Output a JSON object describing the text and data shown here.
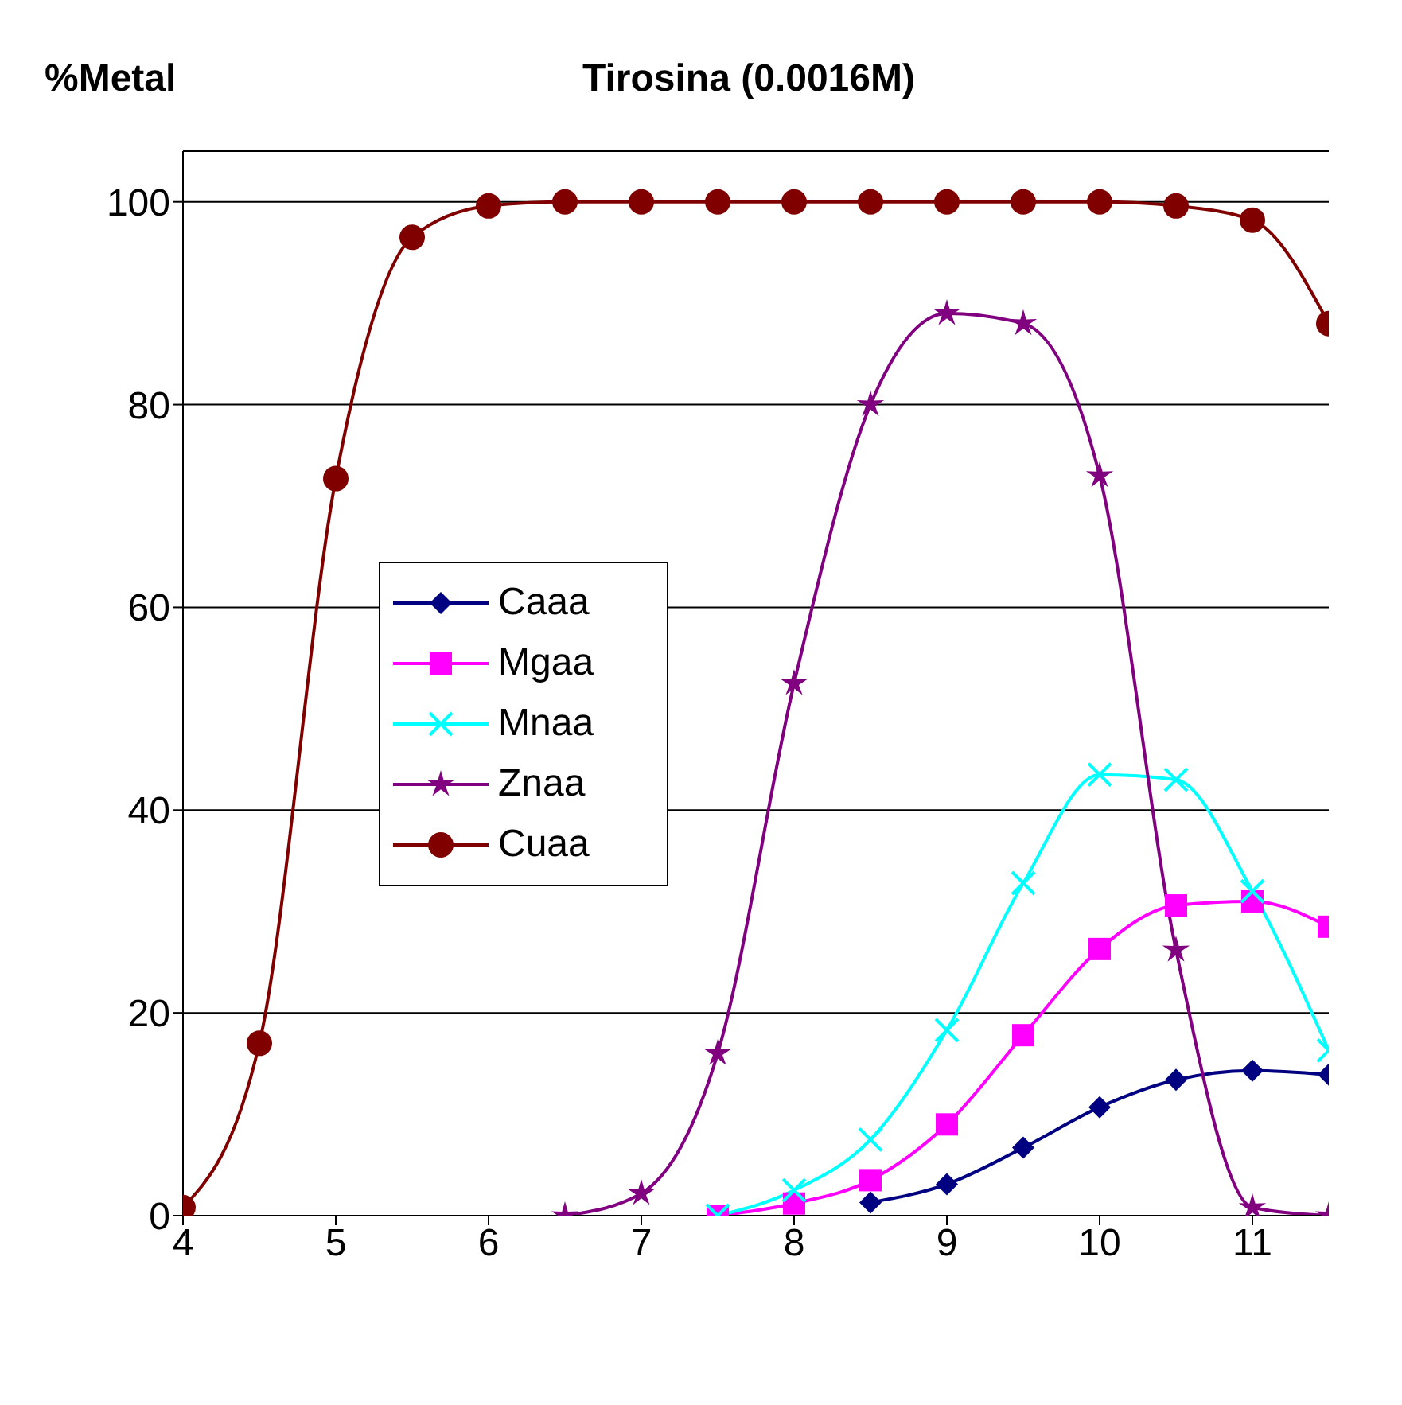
{
  "chart_data": {
    "type": "line",
    "title": "Tirosina (0.0016M)",
    "ylabel": "%Metal",
    "xlim": [
      4,
      11.5
    ],
    "xticks": [
      4,
      5,
      6,
      7,
      8,
      9,
      10,
      11
    ],
    "ylim": [
      0,
      105
    ],
    "yticks": [
      0,
      20,
      40,
      60,
      80,
      100
    ],
    "grid": "y",
    "legend": "left",
    "series": [
      {
        "name": "Caaa",
        "color": "#000080",
        "marker": "diamond",
        "x": [
          8.5,
          9,
          9.5,
          10,
          10.5,
          11,
          11.5
        ],
        "values": [
          1.3,
          3.1,
          6.7,
          10.7,
          13.4,
          14.3,
          13.9
        ]
      },
      {
        "name": "Mgaa",
        "color": "#ff00ff",
        "marker": "square",
        "x": [
          7.5,
          8,
          8.5,
          9,
          9.5,
          10,
          10.5,
          11,
          11.5
        ],
        "values": [
          0,
          1.2,
          3.5,
          9,
          17.8,
          26.3,
          30.6,
          31,
          28.5
        ]
      },
      {
        "name": "Mnaa",
        "color": "#00ffff",
        "marker": "cross",
        "x": [
          7.5,
          8,
          8.5,
          9,
          9.5,
          10,
          10.5,
          11,
          11.5
        ],
        "values": [
          0,
          2.5,
          7.5,
          18.3,
          32.8,
          43.5,
          43,
          32,
          16.3
        ]
      },
      {
        "name": "Znaa",
        "color": "#800080",
        "marker": "star",
        "x": [
          6.5,
          7,
          7.5,
          8,
          8.5,
          9,
          9.5,
          10,
          10.5,
          11,
          11.5
        ],
        "values": [
          0,
          2.2,
          16,
          52.5,
          80,
          89,
          88,
          73,
          26.2,
          0.8,
          0
        ]
      },
      {
        "name": "Cuaa",
        "color": "#800000",
        "marker": "circle",
        "x": [
          4,
          4.5,
          5,
          5.5,
          6,
          6.5,
          7,
          7.5,
          8,
          8.5,
          9,
          9.5,
          10,
          10.5,
          11,
          11.5
        ],
        "values": [
          0.8,
          17,
          72.7,
          96.5,
          99.6,
          100,
          100,
          100,
          100,
          100,
          100,
          100,
          100,
          99.6,
          98.2,
          88
        ]
      }
    ]
  }
}
